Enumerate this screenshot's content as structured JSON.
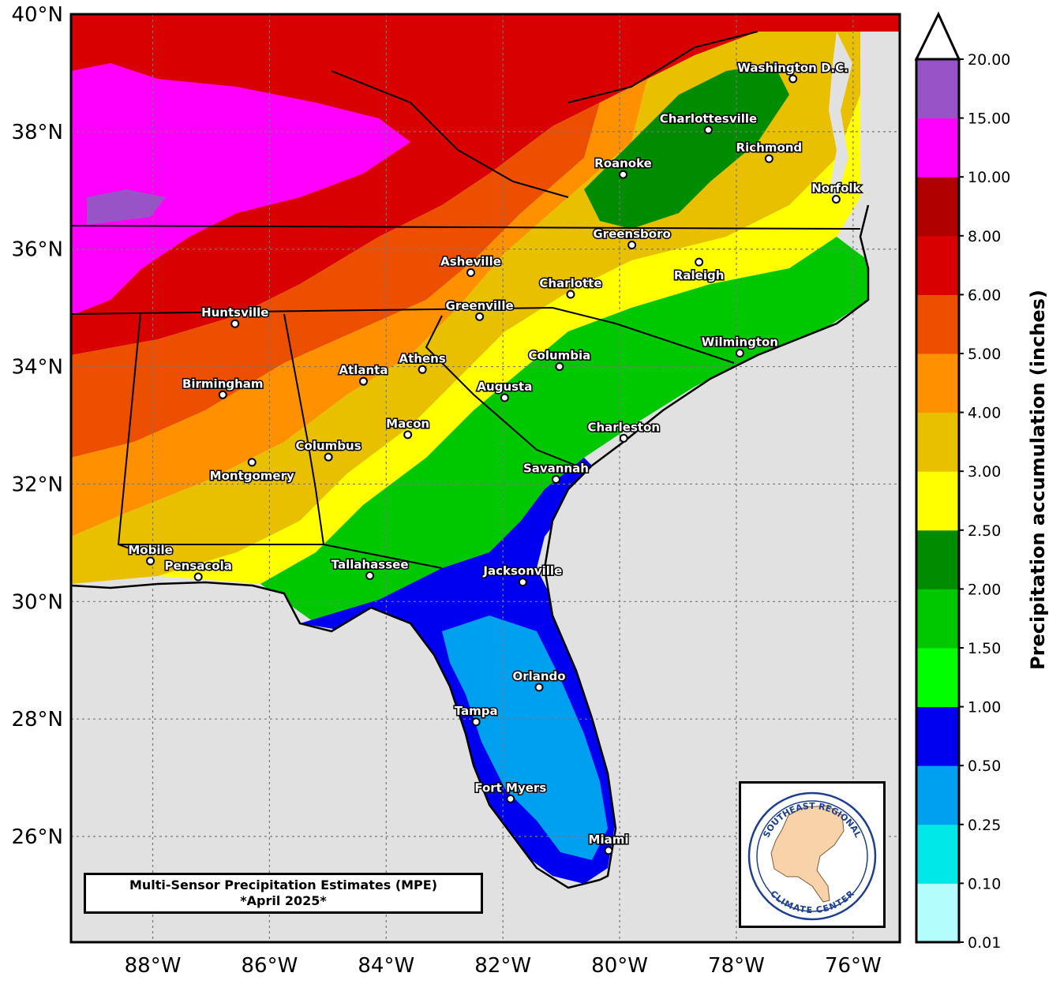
{
  "map": {
    "lat_labels": [
      "40°N",
      "38°N",
      "36°N",
      "34°N",
      "32°N",
      "30°N",
      "28°N",
      "26°N"
    ],
    "lon_labels": [
      "88°W",
      "86°W",
      "84°W",
      "82°W",
      "80°W",
      "78°W",
      "76°W"
    ],
    "lat_range": [
      24.2,
      40.0
    ],
    "lon_range": [
      -89.4,
      -75.2
    ],
    "gridlines": "dotted",
    "cities": [
      {
        "name": "Washington D.C.",
        "lat": 38.9,
        "lon": -77.03
      },
      {
        "name": "Charlottesville",
        "lat": 38.03,
        "lon": -78.48
      },
      {
        "name": "Richmond",
        "lat": 37.54,
        "lon": -77.44
      },
      {
        "name": "Roanoke",
        "lat": 37.27,
        "lon": -79.94
      },
      {
        "name": "Norfolk",
        "lat": 36.85,
        "lon": -76.29
      },
      {
        "name": "Greensboro",
        "lat": 36.07,
        "lon": -79.79
      },
      {
        "name": "Raleigh",
        "lat": 35.78,
        "lon": -78.64
      },
      {
        "name": "Asheville",
        "lat": 35.6,
        "lon": -82.55
      },
      {
        "name": "Charlotte",
        "lat": 35.23,
        "lon": -80.84
      },
      {
        "name": "Greenville",
        "lat": 34.85,
        "lon": -82.4
      },
      {
        "name": "Huntsville",
        "lat": 34.73,
        "lon": -86.59
      },
      {
        "name": "Wilmington",
        "lat": 34.23,
        "lon": -77.94
      },
      {
        "name": "Columbia",
        "lat": 34.0,
        "lon": -81.03
      },
      {
        "name": "Athens",
        "lat": 33.95,
        "lon": -83.38
      },
      {
        "name": "Atlanta",
        "lat": 33.75,
        "lon": -84.39
      },
      {
        "name": "Birmingham",
        "lat": 33.52,
        "lon": -86.8
      },
      {
        "name": "Augusta",
        "lat": 33.47,
        "lon": -81.97
      },
      {
        "name": "Macon",
        "lat": 32.84,
        "lon": -83.63
      },
      {
        "name": "Charleston",
        "lat": 32.78,
        "lon": -79.93
      },
      {
        "name": "Columbus",
        "lat": 32.46,
        "lon": -84.99
      },
      {
        "name": "Montgomery",
        "lat": 32.37,
        "lon": -86.3
      },
      {
        "name": "Savannah",
        "lat": 32.08,
        "lon": -81.09
      },
      {
        "name": "Mobile",
        "lat": 30.69,
        "lon": -88.04
      },
      {
        "name": "Pensacola",
        "lat": 30.42,
        "lon": -87.22
      },
      {
        "name": "Tallahassee",
        "lat": 30.44,
        "lon": -84.28
      },
      {
        "name": "Jacksonville",
        "lat": 30.33,
        "lon": -81.66
      },
      {
        "name": "Orlando",
        "lat": 28.54,
        "lon": -81.38
      },
      {
        "name": "Tampa",
        "lat": 27.95,
        "lon": -82.46
      },
      {
        "name": "Fort Myers",
        "lat": 26.64,
        "lon": -81.87
      },
      {
        "name": "Miami",
        "lat": 25.76,
        "lon": -80.19
      }
    ]
  },
  "colorbar": {
    "title": "Precipitation accumulation (inches)",
    "levels": [
      "0.01",
      "0.10",
      "0.25",
      "0.50",
      "1.00",
      "1.50",
      "2.00",
      "2.50",
      "3.00",
      "4.00",
      "5.00",
      "6.00",
      "8.00",
      "10.00",
      "15.00",
      "20.00"
    ],
    "colors": [
      "#b3fdfd",
      "#00e8e8",
      "#00a0f0",
      "#0000f0",
      "#00ff00",
      "#00c800",
      "#008c00",
      "#ffff00",
      "#e8c000",
      "#ff9000",
      "#ec4f00",
      "#d80000",
      "#b00000",
      "#ff00ff",
      "#9854c6"
    ],
    "extend": "max"
  },
  "title_box": {
    "line1": "Multi-Sensor Precipitation Estimates (MPE)",
    "line2": "*April 2025*"
  },
  "logo": {
    "top_text": "SOUTHEAST REGIONAL",
    "bottom_text": "CLIMATE CENTER",
    "ring_color": "#1d3f8f",
    "fill_color": "#f8d2a8"
  },
  "colors": {
    "ocean": "#e1e1e1",
    "frame": "#000000"
  }
}
